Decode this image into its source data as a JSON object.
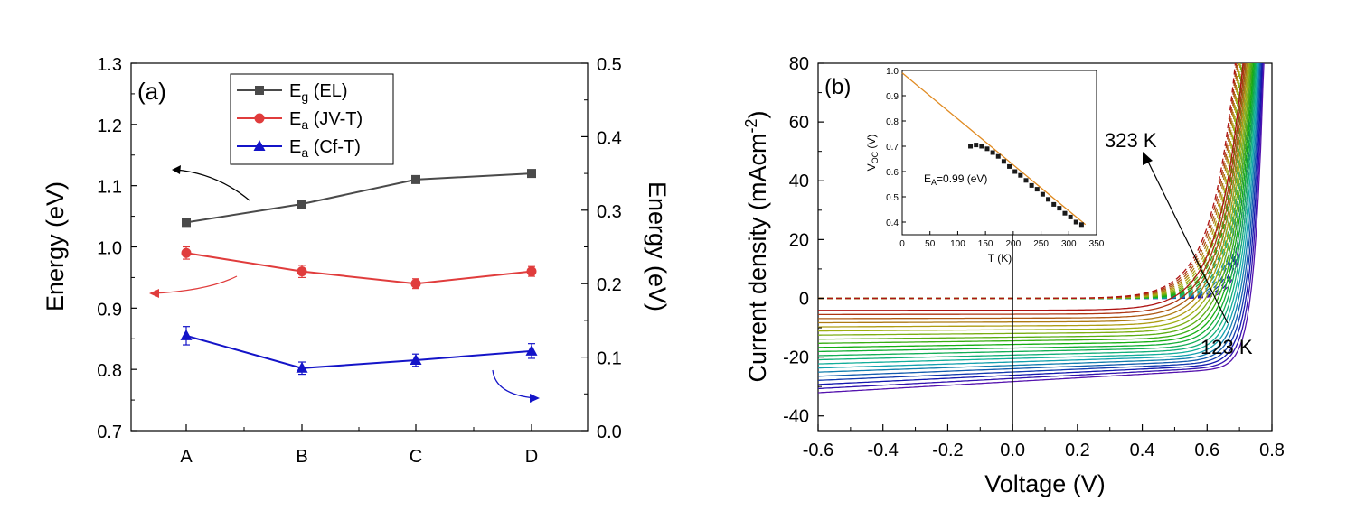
{
  "chart_data": [
    {
      "id": "panel-a",
      "type": "line",
      "panel_label": "(a)",
      "categories": [
        "A",
        "B",
        "C",
        "D"
      ],
      "xlabel": "",
      "ylabel_left": "Energy (eV)",
      "ylabel_right": "Energy (eV)",
      "ylim_left": [
        0.7,
        1.3
      ],
      "ylim_right": [
        0.0,
        0.5
      ],
      "yticks_left": [
        "0.7",
        "0.8",
        "0.9",
        "1.0",
        "1.1",
        "1.2",
        "1.3"
      ],
      "yticks_right": [
        "0.0",
        "0.1",
        "0.2",
        "0.3",
        "0.4",
        "0.5"
      ],
      "series": [
        {
          "name": "Eg (EL)",
          "legend_main": "E",
          "legend_sub": "g",
          "legend_rest": " (EL)",
          "color": "#4a4a4a",
          "marker": "square",
          "axis": "left",
          "values": [
            1.04,
            1.07,
            1.11,
            1.12
          ],
          "errors": [
            0,
            0,
            0,
            0
          ]
        },
        {
          "name": "Ea (JV-T)",
          "legend_main": "E",
          "legend_sub": "a",
          "legend_rest": " (JV-T)",
          "color": "#e03c3c",
          "marker": "circle",
          "axis": "left",
          "values": [
            0.99,
            0.96,
            0.94,
            0.96
          ],
          "errors": [
            0.01,
            0.01,
            0.008,
            0.008
          ]
        },
        {
          "name": "Ea (Cf-T)",
          "legend_main": "E",
          "legend_sub": "a",
          "legend_rest": " (Cf-T)",
          "color": "#1414c8",
          "marker": "triangle",
          "axis": "left",
          "values": [
            0.855,
            0.802,
            0.815,
            0.83
          ],
          "errors": [
            0.015,
            0.01,
            0.01,
            0.012
          ]
        }
      ],
      "grid": false,
      "legend_position": "top-center"
    },
    {
      "id": "panel-b",
      "type": "line",
      "panel_label": "(b)",
      "xlabel": "Voltage (V)",
      "ylabel": "Current density (mAcm",
      "ylabel_sup": "-2",
      "ylabel_close": ")",
      "xlim": [
        -0.6,
        0.8
      ],
      "ylim": [
        -45,
        80
      ],
      "xticks": [
        "-0.6",
        "-0.4",
        "-0.2",
        "0.0",
        "0.2",
        "0.4",
        "0.6",
        "0.8"
      ],
      "yticks": [
        "-40",
        "-20",
        "0",
        "20",
        "40",
        "60",
        "80"
      ],
      "annotations": {
        "high_T": "323 K",
        "low_T": "123 K"
      },
      "series_description": {
        "temperatures_K": [
          123,
          133,
          143,
          153,
          163,
          173,
          183,
          193,
          203,
          213,
          223,
          233,
          243,
          253,
          263,
          273,
          283,
          293,
          303,
          313,
          323
        ],
        "solid": "light J-V",
        "dashed": "dark J-V"
      },
      "grid": false,
      "inset": {
        "type": "scatter",
        "xlabel": "T (K)",
        "ylabel": "V",
        "ylabel_sub": "OC",
        "ylabel_rest": " (V)",
        "xlim": [
          0,
          350
        ],
        "ylim": [
          0.35,
          1.0
        ],
        "xticks": [
          "0",
          "50",
          "100",
          "150",
          "200",
          "250",
          "300",
          "350"
        ],
        "yticks": [
          "0.4",
          "0.5",
          "0.6",
          "0.7",
          "0.8",
          "0.9",
          "1.0"
        ],
        "fit_text_main": "E",
        "fit_text_sub": "A",
        "fit_text_rest": "=0.99 (eV)",
        "fit_line": {
          "x": [
            0,
            330
          ],
          "y": [
            0.99,
            0.39
          ]
        },
        "points": {
          "x": [
            123,
            133,
            143,
            153,
            163,
            173,
            183,
            193,
            203,
            213,
            223,
            233,
            243,
            253,
            263,
            273,
            283,
            293,
            303,
            313,
            323
          ],
          "y": [
            0.7,
            0.705,
            0.7,
            0.69,
            0.675,
            0.66,
            0.64,
            0.62,
            0.6,
            0.585,
            0.565,
            0.545,
            0.53,
            0.51,
            0.49,
            0.47,
            0.455,
            0.435,
            0.42,
            0.4,
            0.39
          ]
        }
      }
    }
  ]
}
